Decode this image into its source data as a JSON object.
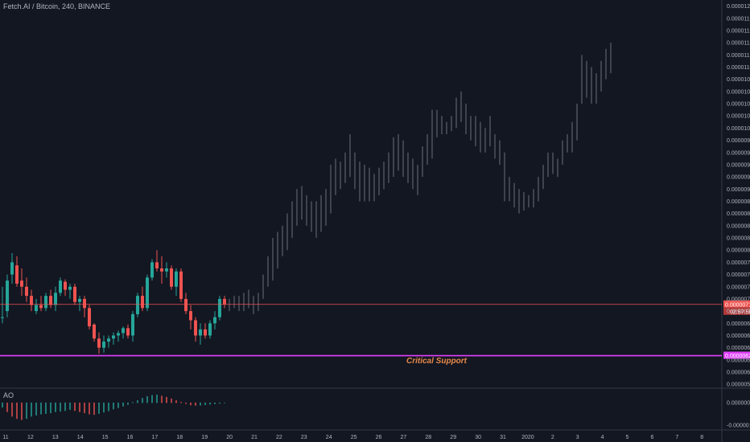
{
  "header": {
    "title": "Fetch.AI / Bitcoin, 240, BINANCE"
  },
  "indicator": {
    "label": "AO"
  },
  "colors": {
    "background": "#131722",
    "up": "#26a69a",
    "down": "#ef5350",
    "projection": "#6b6f7a",
    "price_line": "#ef5350",
    "support_line": "#e040fb",
    "annotation": "#e88a4a",
    "grid": "#2a2e39",
    "text": "#b2b5be"
  },
  "chart_data": {
    "type": "candlestick",
    "title": "Fetch.AI / Bitcoin, 240, BINANCE",
    "y_axis": {
      "ticks": [
        "0.00001200",
        "0.00001180",
        "0.00001160",
        "0.00001140",
        "0.00001120",
        "0.00001100",
        "0.00001080",
        "0.00001060",
        "0.00001040",
        "0.00001020",
        "0.00001000",
        "0.00000980",
        "0.00000960",
        "0.00000940",
        "0.00000920",
        "0.00000900",
        "0.00000880",
        "0.00000860",
        "0.00000840",
        "0.00000820",
        "0.00000800",
        "0.00000780",
        "0.00000760",
        "0.00000740",
        "0.00000720",
        "0.00000700",
        "0.00000680",
        "0.00000660",
        "0.00000640",
        "0.00000620",
        "0.00000600",
        "0.00000580"
      ],
      "range": [
        5.75e-06,
        1.21e-05
      ]
    },
    "x_axis": {
      "ticks": [
        "11",
        "12",
        "13",
        "14",
        "15",
        "16",
        "17",
        "18",
        "19",
        "20",
        "21",
        "22",
        "23",
        "24",
        "25",
        "26",
        "27",
        "28",
        "29",
        "30",
        "31",
        "2020",
        "2",
        "3",
        "4",
        "5",
        "6",
        "7",
        "8"
      ]
    },
    "current_price": {
      "value": 7.11e-06,
      "label": "0.00000711",
      "countdown": "02:57:58"
    },
    "support": {
      "value": 6.27e-06,
      "label": "0.00000627",
      "annotation": "Critical Support"
    },
    "candles": [
      {
        "o": 6.9e-06,
        "h": 7.4e-06,
        "l": 6.8e-06,
        "c": 6.9e-06
      },
      {
        "o": 7e-06,
        "h": 7.6e-06,
        "l": 6.9e-06,
        "c": 7.5e-06
      },
      {
        "o": 7.6e-06,
        "h": 7.95e-06,
        "l": 7.45e-06,
        "c": 7.8e-06
      },
      {
        "o": 7.75e-06,
        "h": 7.9e-06,
        "l": 7.4e-06,
        "c": 7.45e-06
      },
      {
        "o": 7.5e-06,
        "h": 7.7e-06,
        "l": 7.25e-06,
        "c": 7.4e-06
      },
      {
        "o": 7.4e-06,
        "h": 7.55e-06,
        "l": 7.15e-06,
        "c": 7.25e-06
      },
      {
        "o": 7.25e-06,
        "h": 7.35e-06,
        "l": 7e-06,
        "c": 7.1e-06
      },
      {
        "o": 7e-06,
        "h": 7.2e-06,
        "l": 6.95e-06,
        "c": 7.1e-06
      },
      {
        "o": 7.1e-06,
        "h": 7.25e-06,
        "l": 7e-06,
        "c": 7.05e-06
      },
      {
        "o": 7.05e-06,
        "h": 7.3e-06,
        "l": 7e-06,
        "c": 7.25e-06
      },
      {
        "o": 7.25e-06,
        "h": 7.35e-06,
        "l": 7.05e-06,
        "c": 7.1e-06
      },
      {
        "o": 7.1e-06,
        "h": 7.4e-06,
        "l": 7e-06,
        "c": 7.3e-06
      },
      {
        "o": 7.3e-06,
        "h": 7.55e-06,
        "l": 7.25e-06,
        "c": 7.5e-06
      },
      {
        "o": 7.48e-06,
        "h": 7.52e-06,
        "l": 7.25e-06,
        "c": 7.35e-06
      },
      {
        "o": 7.35e-06,
        "h": 7.45e-06,
        "l": 7.2e-06,
        "c": 7.4e-06
      },
      {
        "o": 7.4e-06,
        "h": 7.45e-06,
        "l": 7.1e-06,
        "c": 7.15e-06
      },
      {
        "o": 7.15e-06,
        "h": 7.25e-06,
        "l": 7e-06,
        "c": 7.2e-06
      },
      {
        "o": 7.2e-06,
        "h": 7.25e-06,
        "l": 6.9e-06,
        "c": 7.05e-06
      },
      {
        "o": 7.05e-06,
        "h": 7.1e-06,
        "l": 6.7e-06,
        "c": 6.75e-06
      },
      {
        "o": 6.78e-06,
        "h": 6.8e-06,
        "l": 6.5e-06,
        "c": 6.55e-06
      },
      {
        "o": 6.55e-06,
        "h": 6.65e-06,
        "l": 6.3e-06,
        "c": 6.4e-06
      },
      {
        "o": 6.4e-06,
        "h": 6.6e-06,
        "l": 6.32e-06,
        "c": 6.5e-06
      },
      {
        "o": 6.5e-06,
        "h": 6.6e-06,
        "l": 6.4e-06,
        "c": 6.55e-06
      },
      {
        "o": 6.55e-06,
        "h": 6.65e-06,
        "l": 6.45e-06,
        "c": 6.6e-06
      },
      {
        "o": 6.6e-06,
        "h": 6.68e-06,
        "l": 6.5e-06,
        "c": 6.64e-06
      },
      {
        "o": 6.64e-06,
        "h": 6.75e-06,
        "l": 6.55e-06,
        "c": 6.72e-06
      },
      {
        "o": 6.72e-06,
        "h": 6.78e-06,
        "l": 6.55e-06,
        "c": 6.6e-06
      },
      {
        "o": 6.6e-06,
        "h": 7e-06,
        "l": 6.5e-06,
        "c": 6.95e-06
      },
      {
        "o": 6.95e-06,
        "h": 7.3e-06,
        "l": 6.9e-06,
        "c": 7.25e-06
      },
      {
        "o": 7.25e-06,
        "h": 7.4e-06,
        "l": 7e-06,
        "c": 7.05e-06
      },
      {
        "o": 7.05e-06,
        "h": 7.6e-06,
        "l": 7e-06,
        "c": 7.55e-06
      },
      {
        "o": 7.55e-06,
        "h": 7.85e-06,
        "l": 7.5e-06,
        "c": 7.8e-06
      },
      {
        "o": 7.8e-06,
        "h": 8e-06,
        "l": 7.65e-06,
        "c": 7.7e-06
      },
      {
        "o": 7.7e-06,
        "h": 7.9e-06,
        "l": 7.45e-06,
        "c": 7.65e-06
      },
      {
        "o": 7.65e-06,
        "h": 7.8e-06,
        "l": 7.55e-06,
        "c": 7.7e-06
      },
      {
        "o": 7.7e-06,
        "h": 7.75e-06,
        "l": 7.35e-06,
        "c": 7.4e-06
      },
      {
        "o": 7.4e-06,
        "h": 7.7e-06,
        "l": 7.25e-06,
        "c": 7.65e-06
      },
      {
        "o": 7.65e-06,
        "h": 7.7e-06,
        "l": 7.15e-06,
        "c": 7.2e-06
      },
      {
        "o": 7.2e-06,
        "h": 7.3e-06,
        "l": 6.95e-06,
        "c": 7e-06
      },
      {
        "o": 7e-06,
        "h": 7.1e-06,
        "l": 6.7e-06,
        "c": 6.85e-06
      },
      {
        "o": 6.85e-06,
        "h": 6.9e-06,
        "l": 6.5e-06,
        "c": 6.6e-06
      },
      {
        "o": 6.6e-06,
        "h": 6.8e-06,
        "l": 6.45e-06,
        "c": 6.7e-06
      },
      {
        "o": 6.7e-06,
        "h": 6.8e-06,
        "l": 6.55e-06,
        "c": 6.6e-06
      },
      {
        "o": 6.6e-06,
        "h": 6.85e-06,
        "l": 6.55e-06,
        "c": 6.8e-06
      },
      {
        "o": 6.8e-06,
        "h": 7e-06,
        "l": 6.7e-06,
        "c": 6.9e-06
      },
      {
        "o": 6.9e-06,
        "h": 7.25e-06,
        "l": 6.85e-06,
        "c": 7.2e-06
      },
      {
        "o": 7.2e-06,
        "h": 7.25e-06,
        "l": 7.05e-06,
        "c": 7.11e-06
      }
    ],
    "projection": [
      {
        "h": 7.2e-06,
        "l": 7e-06
      },
      {
        "h": 7.25e-06,
        "l": 7.05e-06
      },
      {
        "h": 7.25e-06,
        "l": 7e-06
      },
      {
        "h": 7.3e-06,
        "l": 7e-06
      },
      {
        "h": 7.35e-06,
        "l": 7.05e-06
      },
      {
        "h": 7.25e-06,
        "l": 6.95e-06
      },
      {
        "h": 7.3e-06,
        "l": 7e-06
      },
      {
        "h": 7.6e-06,
        "l": 7.2e-06
      },
      {
        "h": 7.9e-06,
        "l": 7.4e-06
      },
      {
        "h": 8.2e-06,
        "l": 7.5e-06
      },
      {
        "h": 8.3e-06,
        "l": 7.7e-06
      },
      {
        "h": 8.4e-06,
        "l": 7.9e-06
      },
      {
        "h": 8.6e-06,
        "l": 8e-06
      },
      {
        "h": 8.8e-06,
        "l": 8.2e-06
      },
      {
        "h": 9e-06,
        "l": 8.4e-06
      },
      {
        "h": 9.05e-06,
        "l": 8.5e-06
      },
      {
        "h": 8.9e-06,
        "l": 8.4e-06
      },
      {
        "h": 8.8e-06,
        "l": 8.3e-06
      },
      {
        "h": 8.8e-06,
        "l": 8.2e-06
      },
      {
        "h": 8.9e-06,
        "l": 8.3e-06
      },
      {
        "h": 9e-06,
        "l": 8.4e-06
      },
      {
        "h": 9.4e-06,
        "l": 8.6e-06
      },
      {
        "h": 9.5e-06,
        "l": 8.9e-06
      },
      {
        "h": 9.45e-06,
        "l": 9e-06
      },
      {
        "h": 9.6e-06,
        "l": 9.1e-06
      },
      {
        "h": 9.9e-06,
        "l": 9.2e-06
      },
      {
        "h": 9.6e-06,
        "l": 9e-06
      },
      {
        "h": 9.45e-06,
        "l": 8.8e-06
      },
      {
        "h": 9.4e-06,
        "l": 8.8e-06
      },
      {
        "h": 9.35e-06,
        "l": 8.8e-06
      },
      {
        "h": 9.25e-06,
        "l": 8.8e-06
      },
      {
        "h": 9.35e-06,
        "l": 8.9e-06
      },
      {
        "h": 9.45e-06,
        "l": 9e-06
      },
      {
        "h": 9.6e-06,
        "l": 9.1e-06
      },
      {
        "h": 9.85e-06,
        "l": 9.2e-06
      },
      {
        "h": 9.9e-06,
        "l": 9.3e-06
      },
      {
        "h": 9.8e-06,
        "l": 9.2e-06
      },
      {
        "h": 9.6e-06,
        "l": 9.1e-06
      },
      {
        "h": 9.5e-06,
        "l": 9e-06
      },
      {
        "h": 9.4e-06,
        "l": 8.9e-06
      },
      {
        "h": 9.7e-06,
        "l": 9.2e-06
      },
      {
        "h": 9.9e-06,
        "l": 9.4e-06
      },
      {
        "h": 1.03e-05,
        "l": 9.5e-06
      },
      {
        "h": 1.03e-05,
        "l": 9.85e-06
      },
      {
        "h": 1.02e-05,
        "l": 9.9e-06
      },
      {
        "h": 1.01e-05,
        "l": 9.9e-06
      },
      {
        "h": 1.02e-05,
        "l": 9.95e-06
      },
      {
        "h": 1.05e-05,
        "l": 1e-05
      },
      {
        "h": 1.06e-05,
        "l": 1.01e-05
      },
      {
        "h": 1.04e-05,
        "l": 9.9e-06
      },
      {
        "h": 1.02e-05,
        "l": 9.8e-06
      },
      {
        "h": 1.02e-05,
        "l": 9.7e-06
      },
      {
        "h": 1.01e-05,
        "l": 9.6e-06
      },
      {
        "h": 1e-05,
        "l": 9.6e-06
      },
      {
        "h": 1.02e-05,
        "l": 9.7e-06
      },
      {
        "h": 9.9e-06,
        "l": 9.5e-06
      },
      {
        "h": 9.8e-06,
        "l": 9.4e-06
      },
      {
        "h": 9.6e-06,
        "l": 8.8e-06
      },
      {
        "h": 9.2e-06,
        "l": 8.8e-06
      },
      {
        "h": 9.1e-06,
        "l": 8.7e-06
      },
      {
        "h": 9e-06,
        "l": 8.6e-06
      },
      {
        "h": 8.95e-06,
        "l": 8.65e-06
      },
      {
        "h": 8.9e-06,
        "l": 8.7e-06
      },
      {
        "h": 9e-06,
        "l": 8.7e-06
      },
      {
        "h": 9.2e-06,
        "l": 8.8e-06
      },
      {
        "h": 9.4e-06,
        "l": 9e-06
      },
      {
        "h": 9.6e-06,
        "l": 9.2e-06
      },
      {
        "h": 9.6e-06,
        "l": 9.25e-06
      },
      {
        "h": 9.5e-06,
        "l": 9.2e-06
      },
      {
        "h": 9.8e-06,
        "l": 9.4e-06
      },
      {
        "h": 9.9e-06,
        "l": 9.6e-06
      },
      {
        "h": 1.01e-05,
        "l": 9.6e-06
      },
      {
        "h": 1.04e-05,
        "l": 9.8e-06
      },
      {
        "h": 1.12e-05,
        "l": 1.04e-05
      },
      {
        "h": 1.11e-05,
        "l": 1.05e-05
      },
      {
        "h": 1.1e-05,
        "l": 1.04e-05
      },
      {
        "h": 1.09e-05,
        "l": 1.04e-05
      },
      {
        "h": 1.11e-05,
        "l": 1.06e-05
      },
      {
        "h": 1.13e-05,
        "l": 1.08e-05
      },
      {
        "h": 1.14e-05,
        "l": 1.09e-05
      }
    ],
    "ao": {
      "y_ticks": [
        "0.00000000",
        "-0.00000100"
      ],
      "range": [
        -1.1e-06,
        6e-07
      ],
      "values": [
        -2e-07,
        -4e-07,
        -6e-07,
        -7e-07,
        -7.5e-07,
        -7e-07,
        -6e-07,
        -5.5e-07,
        -5e-07,
        -4.8e-07,
        -4.5e-07,
        -4e-07,
        -3.8e-07,
        -3.5e-07,
        -3e-07,
        -3.5e-07,
        -4e-07,
        -4.5e-07,
        -5e-07,
        -5.2e-07,
        -4.8e-07,
        -4.2e-07,
        -3.6e-07,
        -2.8e-07,
        -2.2e-07,
        -1.5e-07,
        -8e-08,
        2e-08,
        1e-07,
        2e-07,
        2.8e-07,
        3.3e-07,
        3.5e-07,
        3e-07,
        2.5e-07,
        1.8e-07,
        1e-07,
        3e-08,
        -4e-08,
        -1e-07,
        -1.2e-07,
        -1.1e-07,
        -9e-08,
        -7e-08,
        -5e-08,
        -3e-08,
        -1e-08
      ]
    }
  }
}
